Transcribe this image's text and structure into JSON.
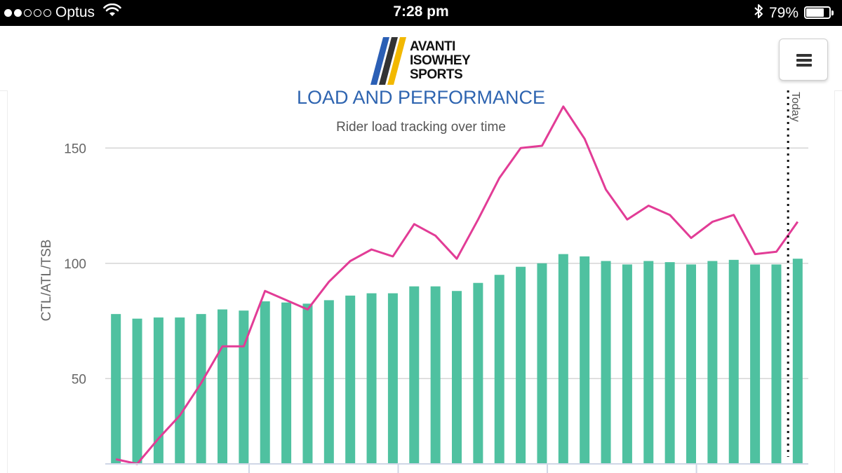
{
  "status_bar": {
    "carrier": "Optus",
    "time": "7:28 pm",
    "battery_percent": "79%",
    "battery_level": 0.79,
    "signal_bars_filled": 2,
    "signal_bars_total": 5,
    "icons": [
      "wifi-icon",
      "bluetooth-icon",
      "battery-icon"
    ]
  },
  "header": {
    "logo_lines": [
      "AVANTI",
      "ISOWHEY",
      "SPORTS"
    ],
    "logo_colors": [
      "#2b5fb5",
      "#333333",
      "#f2b800"
    ],
    "menu_icon": "hamburger-icon"
  },
  "chart_data": {
    "type": "bar",
    "title": "LOAD AND PERFORMANCE",
    "subtitle": "Rider load tracking over time",
    "ylabel": "CTL/ATL/TSB",
    "ylim": [
      13,
      175
    ],
    "yticks": [
      50,
      100,
      150
    ],
    "grid": true,
    "annotation": "Today",
    "series": [
      {
        "type": "bar",
        "color": "#4fc1a0",
        "values": [
          78,
          76,
          76.5,
          76.5,
          78,
          80,
          79.5,
          83.5,
          83,
          82.5,
          84,
          86,
          87,
          87,
          90,
          90,
          88,
          91.5,
          95,
          98.5,
          100,
          104,
          103,
          101,
          99.5,
          101,
          100.5,
          99.5,
          101,
          101.5,
          99.5,
          99.5,
          102
        ]
      },
      {
        "type": "line",
        "color": "#e23c96",
        "values": [
          15,
          13,
          24,
          34,
          48,
          64,
          64,
          88,
          84,
          80,
          92,
          101,
          106,
          103,
          117,
          112,
          102,
          119,
          137,
          150,
          151,
          168,
          154,
          132,
          119,
          125,
          121,
          111,
          118,
          121,
          104,
          105,
          118
        ]
      }
    ]
  }
}
